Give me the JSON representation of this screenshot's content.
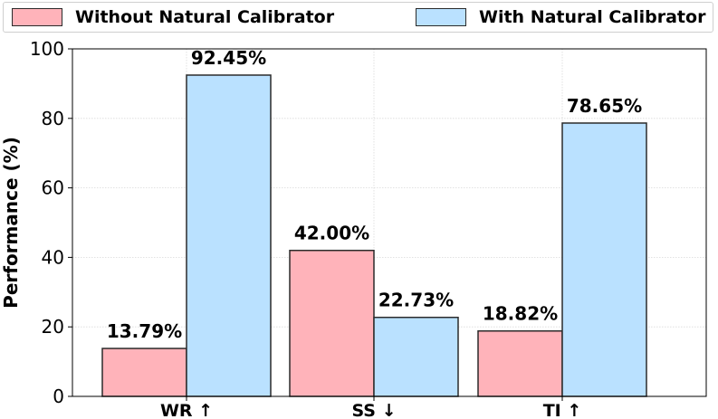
{
  "chart_data": {
    "type": "bar",
    "categories": [
      "WR ↑",
      "SS ↓",
      "TI ↑"
    ],
    "series": [
      {
        "name": "Without Natural Calibrator",
        "values": [
          13.79,
          42.0,
          18.82
        ],
        "labels": [
          "13.79%",
          "42.00%",
          "18.82%"
        ],
        "color": "#ffb3ba"
      },
      {
        "name": "With Natural Calibrator",
        "values": [
          92.45,
          22.73,
          78.65
        ],
        "labels": [
          "92.45%",
          "22.73%",
          "78.65%"
        ],
        "color": "#bae1ff"
      }
    ],
    "xlabel": "",
    "ylabel": "Performance (%)",
    "ylim": [
      0,
      100
    ],
    "yticks": [
      "0",
      "20",
      "40",
      "60",
      "80",
      "100"
    ],
    "grid": true,
    "legend_position": "top"
  }
}
